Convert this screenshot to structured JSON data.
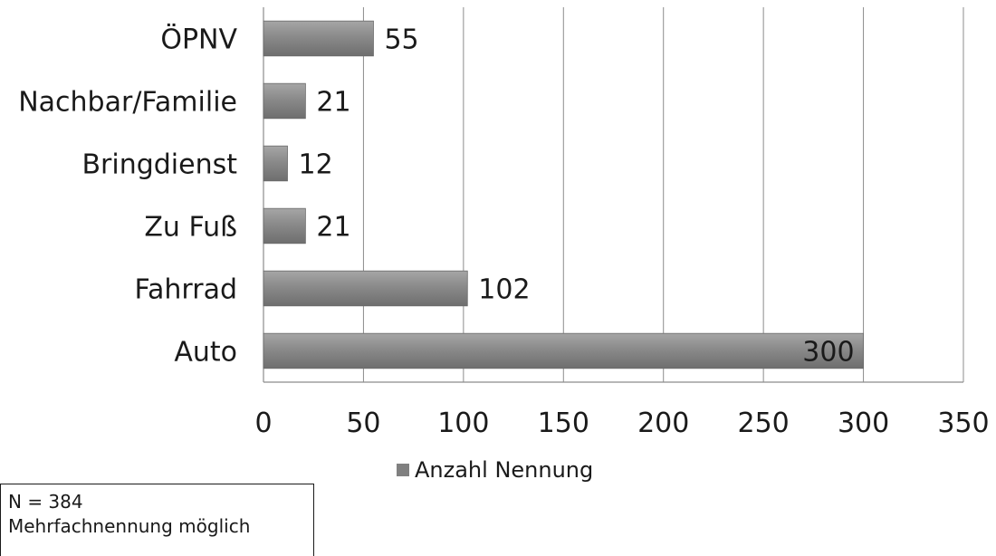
{
  "chart_data": {
    "type": "bar",
    "orientation": "horizontal",
    "categories": [
      "ÖPNV",
      "Nachbar/Familie",
      "Bringdienst",
      "Zu Fuß",
      "Fahrrad",
      "Auto"
    ],
    "series": [
      {
        "name": "Anzahl Nennung",
        "values": [
          55,
          21,
          12,
          21,
          102,
          300
        ]
      }
    ],
    "xlim": [
      0,
      350
    ],
    "xticks": [
      0,
      50,
      100,
      150,
      200,
      250,
      300,
      350
    ],
    "grid": "vertical",
    "legend_position": "bottom",
    "bar_color": "#808080"
  },
  "note": {
    "line1": "N = 384",
    "line2": "Mehrfachnennung möglich"
  }
}
